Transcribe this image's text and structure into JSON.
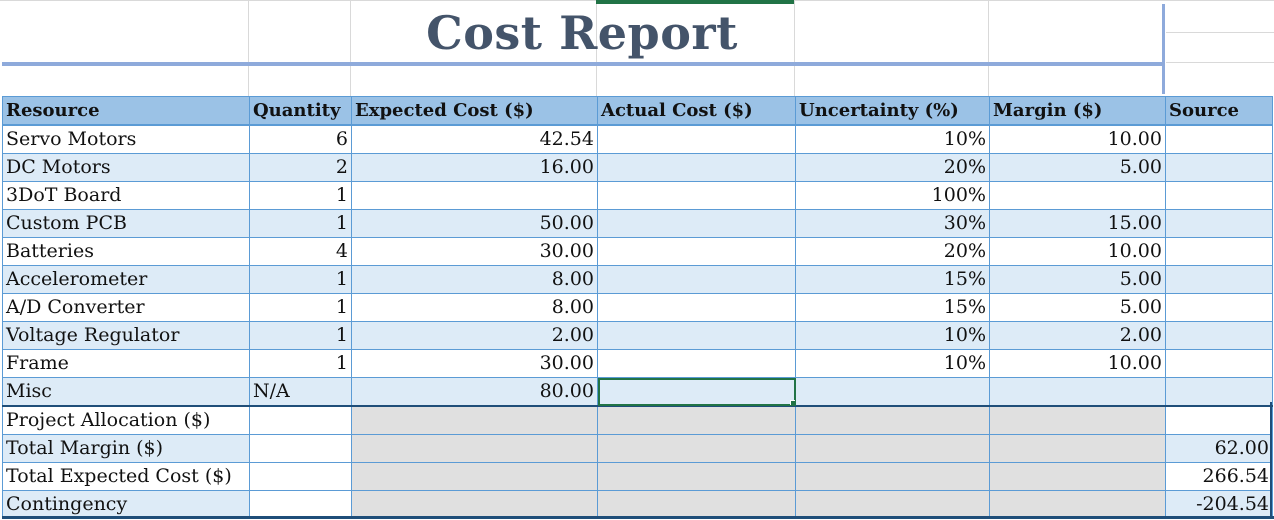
{
  "title": "Cost Report",
  "headers": [
    "Resource",
    "Quantity",
    "Expected Cost ($)",
    "Actual Cost ($)",
    "Uncertainty (%)",
    "Margin ($)",
    "Source"
  ],
  "rows": [
    {
      "resource": "Servo Motors",
      "quantity": "6",
      "expected": "42.54",
      "actual": "",
      "uncertainty": "10%",
      "margin": "10.00",
      "source": ""
    },
    {
      "resource": "DC Motors",
      "quantity": "2",
      "expected": "16.00",
      "actual": "",
      "uncertainty": "20%",
      "margin": "5.00",
      "source": ""
    },
    {
      "resource": "3DoT Board",
      "quantity": "1",
      "expected": "",
      "actual": "",
      "uncertainty": "100%",
      "margin": "",
      "source": ""
    },
    {
      "resource": "Custom PCB",
      "quantity": "1",
      "expected": "50.00",
      "actual": "",
      "uncertainty": "30%",
      "margin": "15.00",
      "source": ""
    },
    {
      "resource": "Batteries",
      "quantity": "4",
      "expected": "30.00",
      "actual": "",
      "uncertainty": "20%",
      "margin": "10.00",
      "source": ""
    },
    {
      "resource": "Accelerometer",
      "quantity": "1",
      "expected": "8.00",
      "actual": "",
      "uncertainty": "15%",
      "margin": "5.00",
      "source": ""
    },
    {
      "resource": "A/D Converter",
      "quantity": "1",
      "expected": "8.00",
      "actual": "",
      "uncertainty": "15%",
      "margin": "5.00",
      "source": ""
    },
    {
      "resource": "Voltage Regulator",
      "quantity": "1",
      "expected": "2.00",
      "actual": "",
      "uncertainty": "10%",
      "margin": "2.00",
      "source": ""
    },
    {
      "resource": "Frame",
      "quantity": "1",
      "expected": "30.00",
      "actual": "",
      "uncertainty": "10%",
      "margin": "10.00",
      "source": ""
    },
    {
      "resource": "Misc",
      "quantity": "N/A",
      "expected": "80.00",
      "actual": "",
      "uncertainty": "",
      "margin": "",
      "source": ""
    }
  ],
  "summary": [
    {
      "label": "Project Allocation ($)",
      "value": ""
    },
    {
      "label": "Total Margin ($)",
      "value": "62.00"
    },
    {
      "label": "Total Expected Cost ($)",
      "value": "266.54"
    },
    {
      "label": "Contingency",
      "value": "-204.54"
    }
  ]
}
